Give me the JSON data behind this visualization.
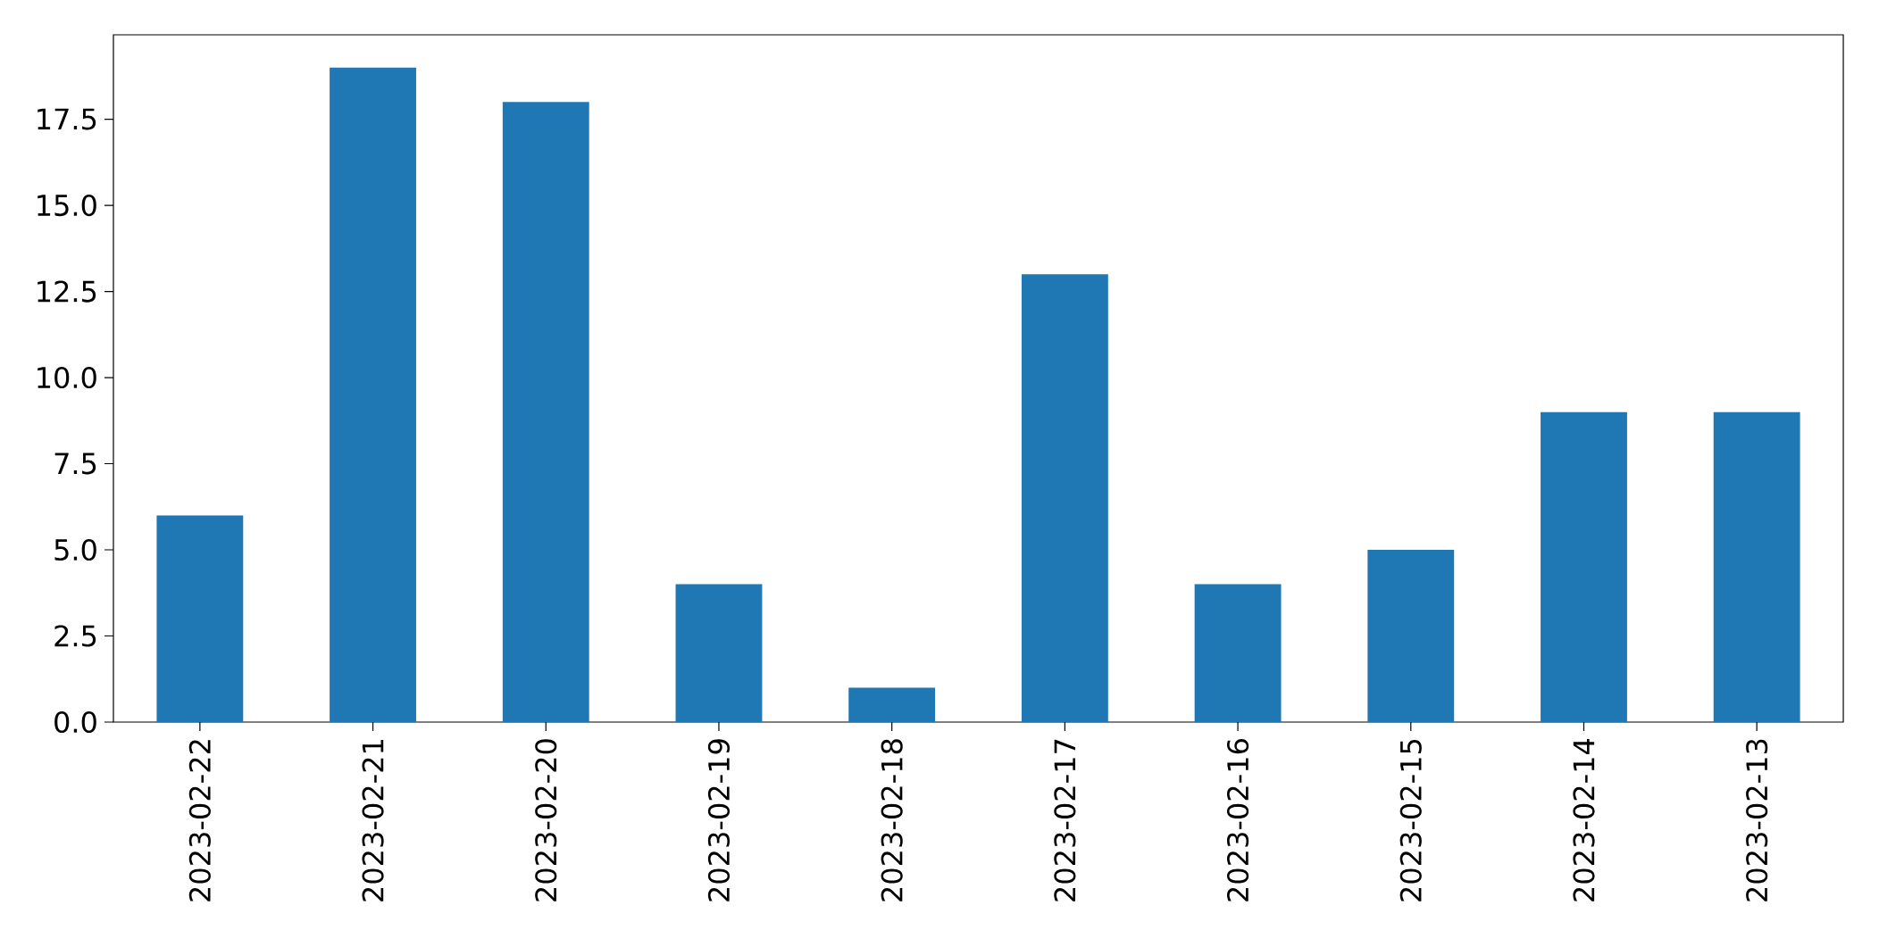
{
  "chart_data": {
    "type": "bar",
    "categories": [
      "2023-02-22",
      "2023-02-21",
      "2023-02-20",
      "2023-02-19",
      "2023-02-18",
      "2023-02-17",
      "2023-02-16",
      "2023-02-15",
      "2023-02-14",
      "2023-02-13"
    ],
    "values": [
      6,
      19,
      18,
      4,
      1,
      13,
      4,
      5,
      9,
      9
    ],
    "color": "#1f77b4",
    "ylim": [
      0,
      19.95
    ],
    "yticks": [
      {
        "value": 0,
        "label": "0.0"
      },
      {
        "value": 2.5,
        "label": "2.5"
      },
      {
        "value": 5,
        "label": "5.0"
      },
      {
        "value": 7.5,
        "label": "7.5"
      },
      {
        "value": 10,
        "label": "10.0"
      },
      {
        "value": 12.5,
        "label": "12.5"
      },
      {
        "value": 15,
        "label": "15.0"
      },
      {
        "value": 17.5,
        "label": "17.5"
      }
    ]
  }
}
